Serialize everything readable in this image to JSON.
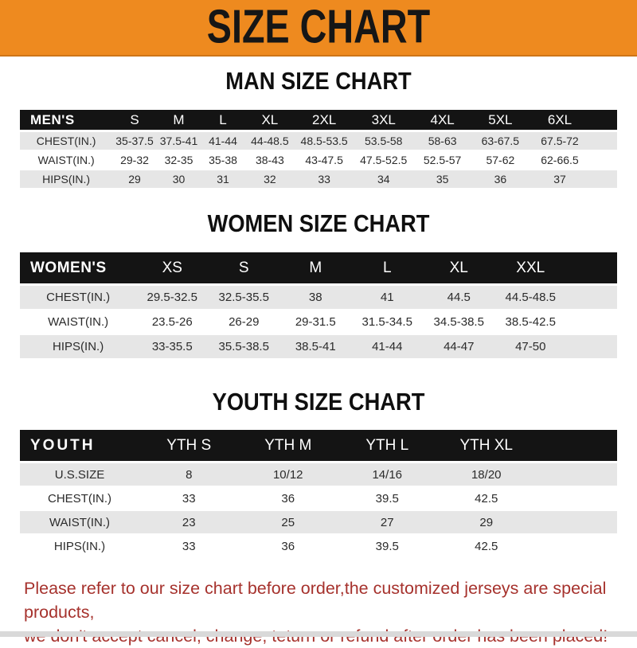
{
  "banner": {
    "title": "SIZE CHART",
    "bg_color": "#EE8A1F"
  },
  "sections": [
    {
      "heading": "MAN SIZE CHART",
      "table": {
        "header_label": "MEN'S",
        "columns": [
          "S",
          "M",
          "L",
          "XL",
          "2XL",
          "3XL",
          "4XL",
          "5XL",
          "6XL"
        ],
        "rows": [
          {
            "label": "CHEST(IN.)",
            "values": [
              "35-37.5",
              "37.5-41",
              "41-44",
              "44-48.5",
              "48.5-53.5",
              "53.5-58",
              "58-63",
              "63-67.5",
              "67.5-72"
            ]
          },
          {
            "label": "WAIST(IN.)",
            "values": [
              "29-32",
              "32-35",
              "35-38",
              "38-43",
              "43-47.5",
              "47.5-52.5",
              "52.5-57",
              "57-62",
              "62-66.5"
            ]
          },
          {
            "label": "HIPS(IN.)",
            "values": [
              "29",
              "30",
              "31",
              "32",
              "33",
              "34",
              "35",
              "36",
              "37"
            ]
          }
        ]
      }
    },
    {
      "heading": "WOMEN SIZE CHART",
      "table": {
        "header_label": "WOMEN'S",
        "columns": [
          "XS",
          "S",
          "M",
          "L",
          "XL",
          "XXL"
        ],
        "rows": [
          {
            "label": "CHEST(IN.)",
            "values": [
              "29.5-32.5",
              "32.5-35.5",
              "38",
              "41",
              "44.5",
              "44.5-48.5"
            ]
          },
          {
            "label": "WAIST(IN.)",
            "values": [
              "23.5-26",
              "26-29",
              "29-31.5",
              "31.5-34.5",
              "34.5-38.5",
              "38.5-42.5"
            ]
          },
          {
            "label": "HIPS(IN.)",
            "values": [
              "33-35.5",
              "35.5-38.5",
              "38.5-41",
              "41-44",
              "44-47",
              "47-50"
            ]
          }
        ]
      }
    },
    {
      "heading": "YOUTH SIZE CHART",
      "table": {
        "header_label": "YOUTH",
        "columns": [
          "YTH S",
          "YTH M",
          "YTH L",
          "YTH XL"
        ],
        "rows": [
          {
            "label": "U.S.SIZE",
            "values": [
              "8",
              "10/12",
              "14/16",
              "18/20"
            ]
          },
          {
            "label": "CHEST(IN.)",
            "values": [
              "33",
              "36",
              "39.5",
              "42.5"
            ]
          },
          {
            "label": "WAIST(IN.)",
            "values": [
              "23",
              "25",
              "27",
              "29"
            ]
          },
          {
            "label": "HIPS(IN.)",
            "values": [
              "33",
              "36",
              "39.5",
              "42.5"
            ]
          }
        ]
      }
    }
  ],
  "footer": {
    "line1": "Please refer to our size chart before order,the customized jerseys are special products,",
    "line2": "we don't accept cancel, change, teturn or refund after order has been placed!",
    "text_color": "#A6322D"
  }
}
